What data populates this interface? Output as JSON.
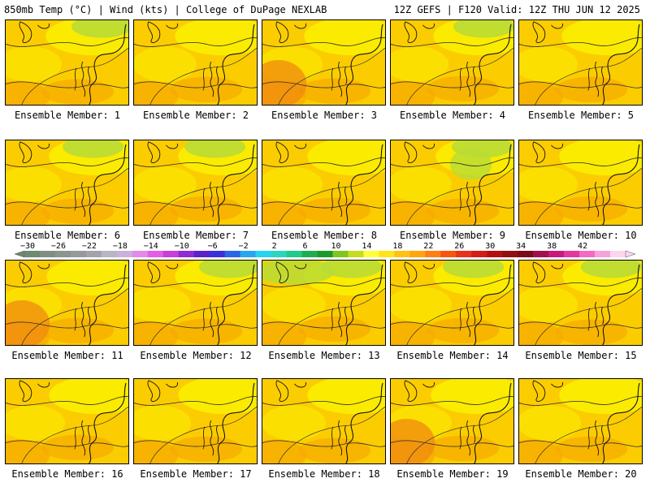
{
  "header": {
    "left": "850mb Temp (°C) | Wind (kts) | College of DuPage NEXLAB",
    "right": "12Z GEFS | F120 Valid: 12Z THU JUN 12 2025"
  },
  "member_prefix": "Ensemble Member: ",
  "members": [
    "1",
    "2",
    "3",
    "4",
    "5",
    "6",
    "7",
    "8",
    "9",
    "10",
    "11",
    "12",
    "13",
    "14",
    "15",
    "16",
    "17",
    "18",
    "19",
    "20"
  ],
  "colorbar": {
    "tick_labels": [
      "−30",
      "−26",
      "−22",
      "−18",
      "−14",
      "−10",
      "−6",
      "−2",
      "2",
      "6",
      "10",
      "14",
      "18",
      "22",
      "26",
      "30",
      "34",
      "38",
      "42"
    ],
    "colors": [
      "#6e8a72",
      "#7f8f83",
      "#8d9590",
      "#97999a",
      "#a3a4a8",
      "#b7b6c2",
      "#cbb0dc",
      "#e28ae8",
      "#e35de6",
      "#c83ed7",
      "#8f2bd0",
      "#5a22c8",
      "#3c2fd8",
      "#2a66e6",
      "#2aa6f0",
      "#27d3ef",
      "#2bd5c0",
      "#22c98c",
      "#1fae4f",
      "#1b9a2a",
      "#7fc720",
      "#c6dc1f",
      "#ffff3b",
      "#ffe41a",
      "#ffc214",
      "#ffa514",
      "#ff7f14",
      "#f75510",
      "#e8321b",
      "#d51a1a",
      "#b51010",
      "#931010",
      "#7a0c18",
      "#a01050",
      "#c81a7a",
      "#e03a9c",
      "#f26ac4",
      "#f7a2dc",
      "#fcd6ee"
    ]
  },
  "palette": {
    "yellow": "#fbee00",
    "gold": "#fbcd00",
    "orange": "#f6a800",
    "dark_orange": "#f08a10",
    "green": "#b9dc35",
    "coast": "#111111",
    "contour": "#2b2b2b"
  }
}
